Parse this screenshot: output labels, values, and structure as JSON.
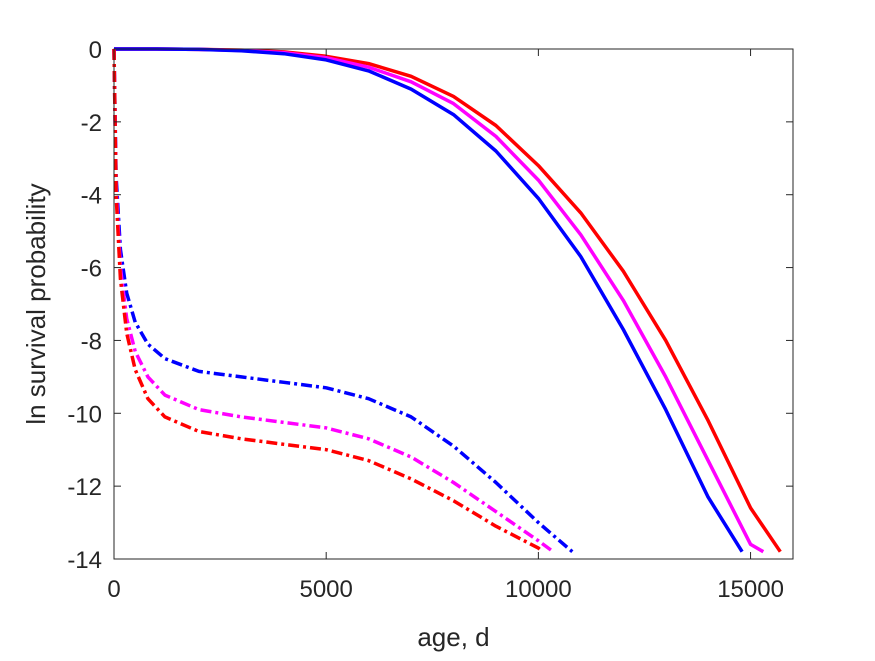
{
  "chart_data": {
    "type": "line",
    "title": "",
    "xlabel": "age, d",
    "ylabel": "ln survival probability",
    "xlim": [
      0,
      16000
    ],
    "ylim": [
      -14,
      0
    ],
    "xticks": [
      0,
      5000,
      10000,
      15000
    ],
    "xtick_labels": [
      "0",
      "5000",
      "10000",
      "15000"
    ],
    "yticks": [
      0,
      -2,
      -4,
      -6,
      -8,
      -10,
      -12,
      -14
    ],
    "ytick_labels": [
      "0",
      "-2",
      "-4",
      "-6",
      "-8",
      "-10",
      "-12",
      "-14"
    ],
    "grid": false,
    "legend": "none",
    "series": [
      {
        "color": "#ff0000",
        "style": "solid",
        "x": [
          0,
          1000,
          2000,
          3000,
          4000,
          5000,
          6000,
          7000,
          8000,
          9000,
          10000,
          11000,
          12000,
          13000,
          14000,
          15000,
          15700
        ],
        "y": [
          0,
          0,
          -0.01,
          -0.03,
          -0.08,
          -0.2,
          -0.4,
          -0.75,
          -1.3,
          -2.1,
          -3.2,
          -4.5,
          -6.1,
          -8.0,
          -10.2,
          -12.6,
          -13.8
        ]
      },
      {
        "color": "#ff00ff",
        "style": "solid",
        "x": [
          0,
          1000,
          2000,
          3000,
          4000,
          5000,
          6000,
          7000,
          8000,
          9000,
          10000,
          11000,
          12000,
          13000,
          14000,
          15000,
          15300
        ],
        "y": [
          0,
          0,
          -0.01,
          -0.04,
          -0.1,
          -0.24,
          -0.5,
          -0.9,
          -1.5,
          -2.4,
          -3.6,
          -5.1,
          -6.9,
          -9.0,
          -11.3,
          -13.6,
          -13.8
        ]
      },
      {
        "color": "#0000ff",
        "style": "solid",
        "x": [
          0,
          1000,
          2000,
          3000,
          4000,
          5000,
          6000,
          7000,
          8000,
          9000,
          10000,
          11000,
          12000,
          13000,
          14000,
          14800
        ],
        "y": [
          0,
          0,
          -0.01,
          -0.05,
          -0.13,
          -0.3,
          -0.6,
          -1.1,
          -1.8,
          -2.8,
          -4.1,
          -5.7,
          -7.7,
          -9.9,
          -12.3,
          -13.8
        ]
      },
      {
        "color": "#0000ff",
        "style": "dashdot",
        "x": [
          0,
          50,
          150,
          300,
          500,
          800,
          1200,
          2000,
          3000,
          4000,
          5000,
          6000,
          7000,
          8000,
          9000,
          10000,
          10800
        ],
        "y": [
          0,
          -3.5,
          -5.5,
          -6.7,
          -7.5,
          -8.1,
          -8.5,
          -8.85,
          -9.0,
          -9.15,
          -9.3,
          -9.6,
          -10.1,
          -10.9,
          -11.9,
          -13.0,
          -13.8
        ]
      },
      {
        "color": "#ff00ff",
        "style": "dashdot",
        "x": [
          0,
          50,
          150,
          300,
          500,
          800,
          1200,
          2000,
          3000,
          4000,
          5000,
          6000,
          7000,
          8000,
          9000,
          10000,
          10350
        ],
        "y": [
          0,
          -3.8,
          -6.0,
          -7.4,
          -8.3,
          -9.0,
          -9.5,
          -9.9,
          -10.1,
          -10.25,
          -10.4,
          -10.7,
          -11.2,
          -11.9,
          -12.7,
          -13.5,
          -13.8
        ]
      },
      {
        "color": "#ff0000",
        "style": "dashdot",
        "x": [
          0,
          50,
          150,
          300,
          500,
          800,
          1200,
          2000,
          3000,
          4000,
          5000,
          6000,
          7000,
          8000,
          9000,
          10000,
          10100
        ],
        "y": [
          0,
          -4.0,
          -6.3,
          -7.8,
          -8.8,
          -9.6,
          -10.1,
          -10.5,
          -10.7,
          -10.85,
          -11.0,
          -11.3,
          -11.8,
          -12.4,
          -13.1,
          -13.7,
          -13.8
        ]
      }
    ]
  }
}
